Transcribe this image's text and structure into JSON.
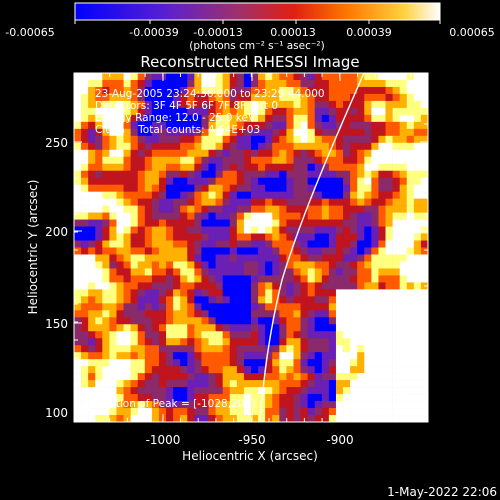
{
  "colorbar": {
    "ticks": [
      "-0.00065",
      "-0.00039",
      "-0.00013",
      "0.00013",
      "0.00039",
      "0.00065"
    ],
    "units": "(photons cm⁻² s⁻¹ asec⁻²)"
  },
  "plot": {
    "title": "Reconstructed RHESSI Image",
    "info": [
      "23-Aug-2005 23:24:36.000 to 23:29:44.000",
      "Detectors: 3F 4F 5F 6F 7F 8F, Att 0",
      "Energy Range: 12.0 - 25.0 keV",
      "Clean    Total counts: 4.64E+03"
    ],
    "peak": "Position of Peak = [-1028,203]",
    "x_ticks": [
      "-1000",
      "-950",
      "-900"
    ],
    "y_ticks": [
      "250",
      "200",
      "150",
      "100"
    ],
    "xlabel": "Heliocentric X (arcsec)",
    "ylabel": "Heliocentric Y (arcsec)"
  },
  "footer": {
    "timestamp": "1-May-2022 22:06"
  },
  "colors": {
    "background": "#000000",
    "limb": "#ffffff",
    "colormap": [
      "#0000ff",
      "#6a1fb5",
      "#8a2a6a",
      "#c0141e",
      "#ff5a00",
      "#ffb000",
      "#ffff80",
      "#ffffff"
    ]
  }
}
